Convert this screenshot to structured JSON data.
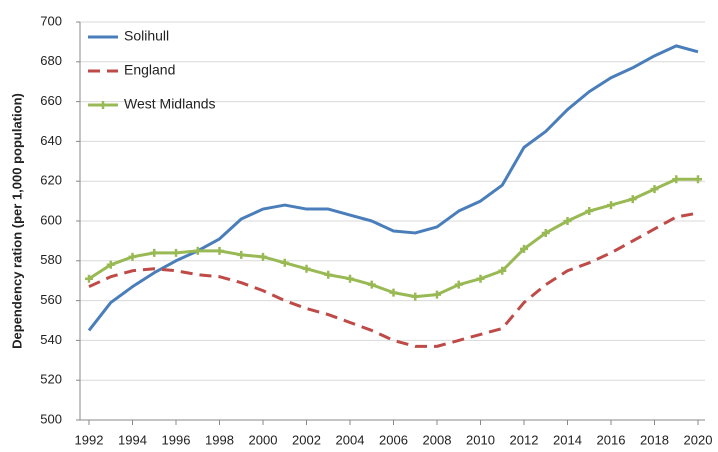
{
  "chart_data": {
    "type": "line",
    "y_label": "Dependency ration (per 1,000 population)",
    "x": [
      1992,
      1993,
      1994,
      1995,
      1996,
      1997,
      1998,
      1999,
      2000,
      2001,
      2002,
      2003,
      2004,
      2005,
      2006,
      2007,
      2008,
      2009,
      2010,
      2011,
      2012,
      2013,
      2014,
      2015,
      2016,
      2017,
      2018,
      2019,
      2020
    ],
    "series": [
      {
        "name": "Solihull",
        "color": "#4a7ebb",
        "dash": false,
        "marker": false,
        "values": [
          545,
          559,
          567,
          574,
          580,
          585,
          591,
          601,
          606,
          608,
          606,
          606,
          603,
          600,
          595,
          594,
          597,
          605,
          610,
          618,
          637,
          645,
          656,
          665,
          672,
          677,
          683,
          688,
          685
        ]
      },
      {
        "name": "England",
        "color": "#be4b48",
        "dash": true,
        "marker": false,
        "values": [
          567,
          572,
          575,
          576,
          575,
          573,
          572,
          569,
          565,
          560,
          556,
          553,
          549,
          545,
          540,
          537,
          537,
          540,
          543,
          546,
          559,
          568,
          575,
          579,
          584,
          590,
          596,
          602,
          604
        ]
      },
      {
        "name": "West Midlands",
        "color": "#98b954",
        "dash": false,
        "marker": true,
        "values": [
          571,
          578,
          582,
          584,
          584,
          585,
          585,
          583,
          582,
          579,
          576,
          573,
          571,
          568,
          564,
          562,
          563,
          568,
          571,
          575,
          586,
          594,
          600,
          605,
          608,
          611,
          616,
          621,
          621
        ]
      }
    ],
    "xlim": [
      1992,
      2020
    ],
    "xticks": [
      1992,
      1994,
      1996,
      1998,
      2000,
      2002,
      2004,
      2006,
      2008,
      2010,
      2012,
      2014,
      2016,
      2018,
      2020
    ],
    "ylim": [
      500,
      700
    ],
    "yticks": [
      500,
      520,
      540,
      560,
      580,
      600,
      620,
      640,
      660,
      680,
      700
    ],
    "grid": true,
    "legend": "top-left"
  }
}
